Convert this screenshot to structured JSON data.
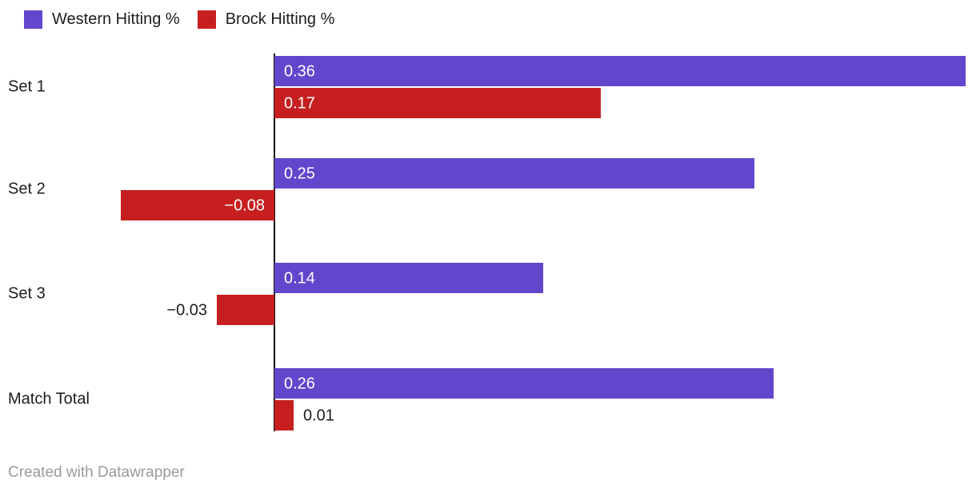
{
  "legend": [
    {
      "label": "Western Hitting %",
      "color": "#6246cc"
    },
    {
      "label": "Brock Hitting %",
      "color": "#c71f1f"
    }
  ],
  "chart_data": {
    "type": "bar",
    "orientation": "horizontal",
    "title": "",
    "xlabel": "",
    "ylabel": "",
    "categories": [
      "Set 1",
      "Set 2",
      "Set 3",
      "Match Total"
    ],
    "series": [
      {
        "name": "Western Hitting %",
        "color": "#6246cc",
        "values": [
          0.36,
          0.25,
          0.14,
          0.26
        ],
        "labels": [
          "0.36",
          "0.25",
          "0.14",
          "0.26"
        ]
      },
      {
        "name": "Brock Hitting %",
        "color": "#c71f1f",
        "values": [
          0.17,
          -0.08,
          -0.03,
          0.01
        ],
        "labels": [
          "0.17",
          "−0.08",
          "−0.03",
          "0.01"
        ]
      }
    ],
    "xlim": [
      -0.1,
      0.365
    ],
    "grid": false,
    "legend_position": "top",
    "zero_axis_color": "#141414",
    "label_color_inside": "#ffffff",
    "label_color_outside": "#1d1d1d"
  },
  "footer": {
    "text": "Created with Datawrapper"
  }
}
